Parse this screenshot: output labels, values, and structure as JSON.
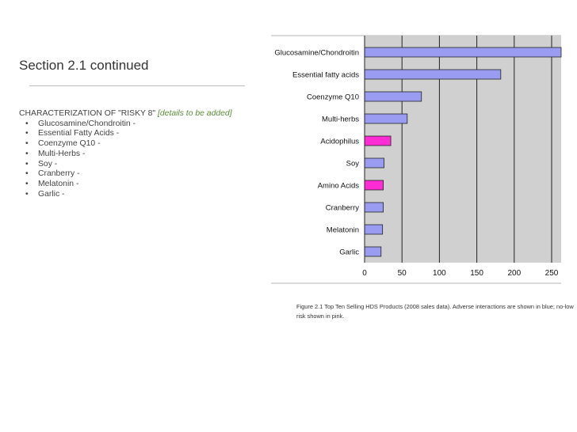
{
  "slide": {
    "title": "Section 2.1 continued",
    "characterization": {
      "heading": "CHARACTERIZATION OF \"RISKY 8\"",
      "note": "[details to be added]",
      "items": [
        "Glucosamine/Chondroitin -",
        "Essential Fatty Acids -",
        "Coenzyme Q10 -",
        "Multi-Herbs -",
        "Soy -",
        "Cranberry -",
        "Melatonin -",
        "Garlic -"
      ]
    },
    "caption": "Figure 2.1 Top Ten Selling HDS Products (2008 sales data). Adverse interactions are shown in blue; no-low risk shown in pink."
  },
  "colors": {
    "plot_background": "#d0d0d0",
    "bar_adverse": "#9a9cf2",
    "bar_no_low_risk": "#ff2bd4",
    "bar_border": "#222222",
    "gridline": "#222222"
  },
  "chart_data": {
    "type": "bar",
    "orientation": "horizontal",
    "categories": [
      "Glucosamine/Chondroitin",
      "Essential fatty acids",
      "Coenzyme Q10",
      "Multi-herbs",
      "Acidophilus",
      "Soy",
      "Amino Acids",
      "Cranberry",
      "Melatonin",
      "Garlic"
    ],
    "values": [
      270,
      182,
      76,
      57,
      35,
      26,
      25,
      25,
      24,
      22
    ],
    "risk": [
      "adverse",
      "adverse",
      "adverse",
      "adverse",
      "no-low",
      "adverse",
      "no-low",
      "adverse",
      "adverse",
      "adverse"
    ],
    "xlim": [
      0,
      265
    ],
    "xticks": [
      0,
      50,
      100,
      150,
      200,
      250
    ],
    "grid": true,
    "title": "",
    "xlabel": "",
    "ylabel": ""
  }
}
